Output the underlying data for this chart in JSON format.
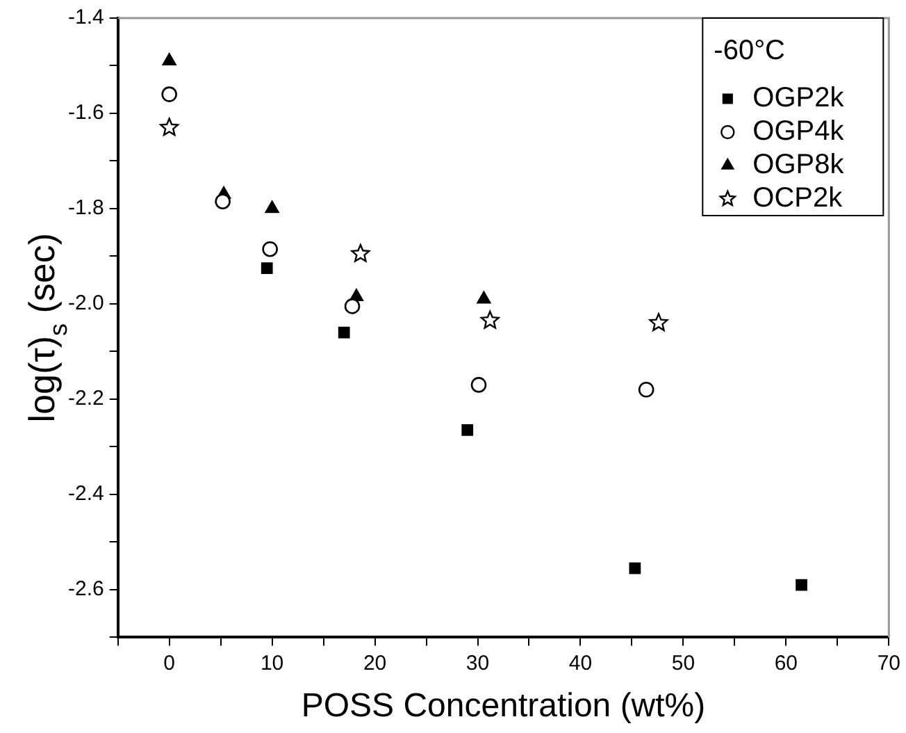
{
  "chart_data": {
    "type": "scatter",
    "xlabel": "POSS Concentration (wt%)",
    "ylabel": "log(τ)$_{s}$ (sec)",
    "legend_title": "-60°C",
    "legend": "top right",
    "grid": false,
    "xlim": [
      -5,
      70
    ],
    "xticks": [
      {
        "value": -5,
        "label": null
      },
      0,
      {
        "value": 5,
        "label": null
      },
      10,
      {
        "value": 15,
        "label": null
      },
      20,
      {
        "value": 25,
        "label": null
      },
      30,
      {
        "value": 35,
        "label": null
      },
      40,
      {
        "value": 45,
        "label": null
      },
      50,
      {
        "value": 55,
        "label": null
      },
      60,
      {
        "value": 65,
        "label": null
      },
      70
    ],
    "ylim": [
      -2.7,
      -1.4
    ],
    "yticks": [
      {
        "value": -2.7,
        "label": null
      },
      -2.6,
      {
        "value": -2.5,
        "label": null
      },
      -2.4,
      {
        "value": -2.3,
        "label": null
      },
      -2.2,
      {
        "value": -2.1,
        "label": null
      },
      {
        "value": -2,
        "label": "-2.0"
      },
      {
        "value": -1.9,
        "label": null
      },
      -1.8,
      {
        "value": -1.7,
        "label": null
      },
      -1.6,
      {
        "value": -1.5,
        "label": null
      },
      -1.4
    ],
    "series": [
      {
        "name": "OGP2k",
        "color": "#000000",
        "marker": "square",
        "x": [
          9.5,
          17,
          29,
          45.3,
          61.5
        ],
        "values": [
          -1.925,
          -2.06,
          -2.265,
          -2.555,
          -2.59
        ]
      },
      {
        "name": "OGP4k",
        "color": "#000000",
        "marker": "circle",
        "x": [
          0,
          5.2,
          9.8,
          17.8,
          30.1,
          46.4
        ],
        "values": [
          -1.56,
          -1.785,
          -1.885,
          -2.005,
          -2.17,
          -2.18
        ]
      },
      {
        "name": "OGP8k",
        "color": "#000000",
        "marker": "triangle",
        "x": [
          0,
          5.3,
          10,
          18.2,
          30.6
        ],
        "values": [
          -1.49,
          -1.77,
          -1.8,
          -1.985,
          -1.99
        ]
      },
      {
        "name": "OCP2k",
        "color": "#000000",
        "marker": "star",
        "x": [
          0,
          18.6,
          31.2,
          47.6
        ],
        "values": [
          -1.63,
          -1.895,
          -2.035,
          -2.04
        ]
      }
    ]
  }
}
